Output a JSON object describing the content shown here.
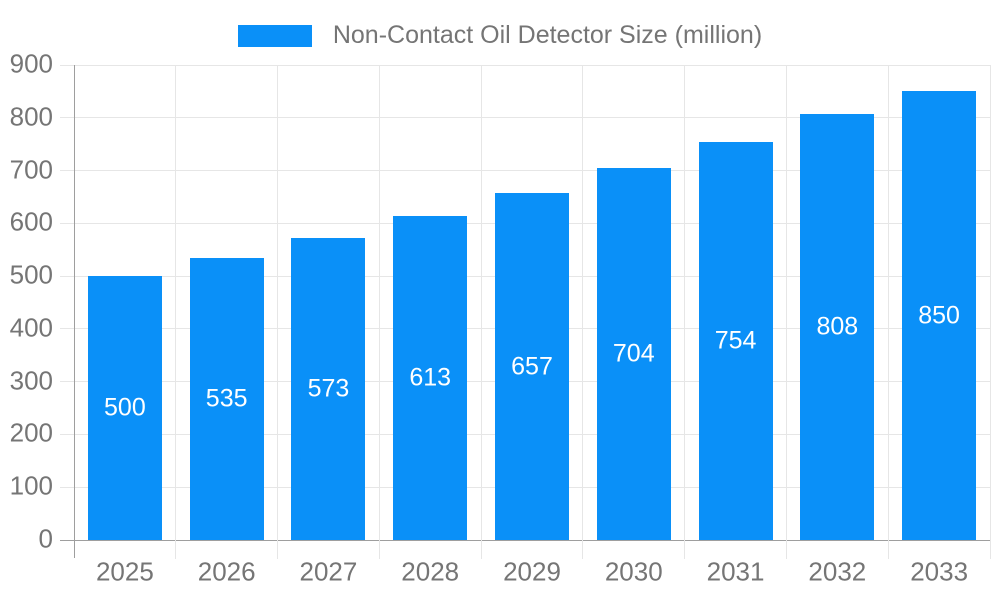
{
  "chart_data": {
    "type": "bar",
    "title": "",
    "legend": {
      "label": "Non-Contact Oil Detector Size (million)",
      "position": "top"
    },
    "categories": [
      "2025",
      "2026",
      "2027",
      "2028",
      "2029",
      "2030",
      "2031",
      "2032",
      "2033"
    ],
    "series": [
      {
        "name": "Non-Contact Oil Detector Size (million)",
        "values": [
          500,
          535,
          573,
          613,
          657,
          704,
          754,
          808,
          850
        ]
      }
    ],
    "xlabel": "",
    "ylabel": "",
    "ylim": [
      0,
      900
    ],
    "y_ticks": [
      0,
      100,
      200,
      300,
      400,
      500,
      600,
      700,
      800,
      900
    ],
    "grid": true,
    "bar_value_labels_visible": true,
    "colors": {
      "bar": "#0a90f8",
      "axis_text": "#757575",
      "bar_label_text": "#ffffff",
      "grid_line": "#e6e6e6",
      "axis_line": "#9e9e9e",
      "background": "#ffffff"
    }
  }
}
